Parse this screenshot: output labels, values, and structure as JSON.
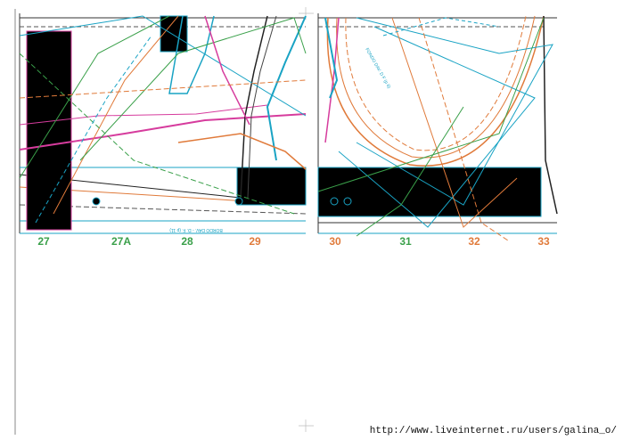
{
  "sizes": [
    {
      "label": "27",
      "color": "#3aa04a"
    },
    {
      "label": "27A",
      "color": "#3aa04a"
    },
    {
      "label": "28",
      "color": "#3aa04a"
    },
    {
      "label": "29",
      "color": "#e07a3a"
    },
    {
      "label": "30",
      "color": "#e07a3a"
    },
    {
      "label": "31",
      "color": "#3aa04a"
    },
    {
      "label": "32",
      "color": "#e07a3a"
    },
    {
      "label": "33",
      "color": "#e07a3a"
    }
  ],
  "piece_labels": [
    "BORDO DAV. - D. F. (p 11)",
    "FONDO DAV. D F (p 8)"
  ],
  "footer": {
    "url": "http://www.liveinternet.ru/users/galina_o/"
  }
}
